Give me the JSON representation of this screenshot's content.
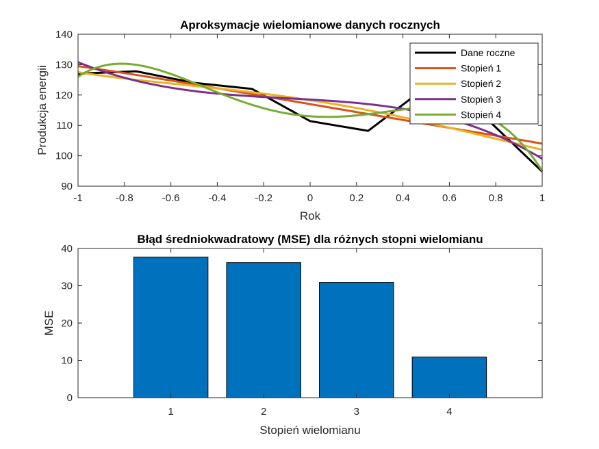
{
  "chart_data": [
    {
      "type": "line",
      "title": "Aproksymacje wielomianowe danych rocznych",
      "xlabel": "Rok",
      "ylabel": "Produkcja energii",
      "xlim": [
        -1,
        1
      ],
      "ylim": [
        90,
        140
      ],
      "xticks": [
        -1,
        -0.8,
        -0.6,
        -0.4,
        -0.2,
        0,
        0.2,
        0.4,
        0.6,
        0.8,
        1
      ],
      "xtick_labels": [
        "-1",
        "-0.8",
        "-0.6",
        "-0.4",
        "-0.2",
        "0",
        "0.2",
        "0.4",
        "0.6",
        "0.8",
        "1"
      ],
      "yticks": [
        90,
        100,
        110,
        120,
        130,
        140
      ],
      "ytick_labels": [
        "90",
        "100",
        "110",
        "120",
        "130",
        "140"
      ],
      "legend_position": "top-right",
      "series": [
        {
          "name": "Dane roczne",
          "color": "#000000",
          "x": [
            -1,
            -0.75,
            -0.5,
            -0.25,
            0,
            0.25,
            0.5,
            0.75,
            1
          ],
          "y": [
            127,
            127.8,
            124,
            122,
            111.4,
            108.2,
            122.6,
            113,
            94.8
          ]
        },
        {
          "name": "Stopień 1",
          "color": "#D95319",
          "fit_degree": 1,
          "x": [
            -1,
            -0.5,
            0,
            0.5,
            1
          ],
          "y": [
            129.5,
            123.5,
            117.0,
            110.5,
            104.0
          ]
        },
        {
          "name": "Stopień 2",
          "color": "#EDB120",
          "fit_degree": 2,
          "x": [
            -1,
            -0.5,
            0,
            0.5,
            1
          ],
          "y": [
            127.5,
            123.0,
            118.3,
            111.0,
            102.0
          ]
        },
        {
          "name": "Stopień 3",
          "color": "#7E2F8E",
          "fit_degree": 3,
          "x": [
            -1,
            -0.5,
            0,
            0.5,
            1
          ],
          "y": [
            130.8,
            121.3,
            118.5,
            114.0,
            99.0
          ]
        },
        {
          "name": "Stopień 4",
          "color": "#77AC30",
          "fit_degree": 4,
          "x": [
            -1,
            -0.5,
            0,
            0.5,
            1
          ],
          "y": [
            126.0,
            124.0,
            113.0,
            116.0,
            95.0
          ]
        }
      ]
    },
    {
      "type": "bar",
      "title": "Błąd średniokwadratowy (MSE) dla różnych stopni wielomianu",
      "xlabel": "Stopień wielomianu",
      "ylabel": "MSE",
      "categories": [
        "1",
        "2",
        "3",
        "4"
      ],
      "values": [
        37.7,
        36.2,
        30.9,
        10.9
      ],
      "xlim": [
        0,
        5
      ],
      "ylim": [
        0,
        40
      ],
      "yticks": [
        0,
        10,
        20,
        30,
        40
      ],
      "ytick_labels": [
        "0",
        "10",
        "20",
        "30",
        "40"
      ],
      "bar_color": "#0072BD"
    }
  ]
}
